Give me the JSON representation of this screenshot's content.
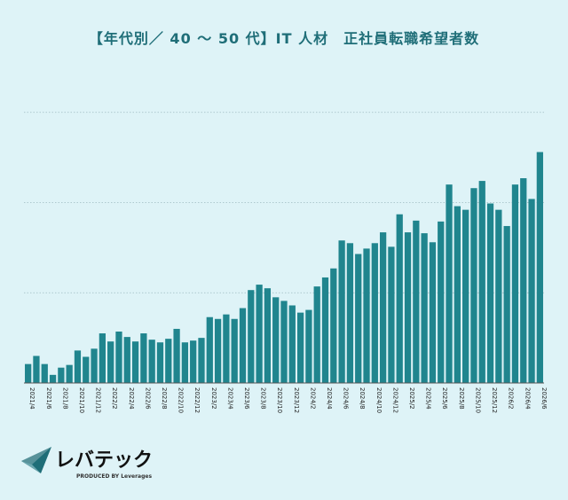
{
  "colors": {
    "bar": "#20858e",
    "grid": "#9fbcc2",
    "title": "#1f6e78",
    "background": "#def3f7"
  },
  "brand": {
    "name": "レバテック",
    "tagline": "PRODUCED BY Leverages"
  },
  "chart_data": {
    "type": "bar",
    "title": "【年代別／ 40 ～ 50 代】IT 人材　正社員転職希望者数",
    "xlabel": "",
    "ylabel": "",
    "ylim": [
      0,
      4.0
    ],
    "gridlines": [
      1,
      2,
      3
    ],
    "grid": true,
    "categories": [
      "2021/4",
      "2021/5",
      "2021/6",
      "2021/7",
      "2021/8",
      "2021/9",
      "2021/10",
      "2021/11",
      "2021/12",
      "2022/1",
      "2022/2",
      "2022/3",
      "2022/4",
      "2022/5",
      "2022/6",
      "2022/7",
      "2022/8",
      "2022/9",
      "2022/10",
      "2022/11",
      "2022/12",
      "2023/1",
      "2023/2",
      "2023/3",
      "2023/4",
      "2023/5",
      "2023/6",
      "2023/7",
      "2023/8",
      "2023/9",
      "2023/10",
      "2023/11",
      "2023/12",
      "2024/1",
      "2024/2",
      "2024/3",
      "2024/4",
      "2024/5",
      "2024/6",
      "2024/7",
      "2024/8",
      "2024/9",
      "2024/10",
      "2024/11",
      "2024/12",
      "2025/1",
      "2025/2",
      "2025/3",
      "2025/4",
      "2025/5",
      "2025/6",
      "2025/7",
      "2025/8",
      "2025/9",
      "2025/10",
      "2025/11",
      "2025/12",
      "2026/1",
      "2026/2",
      "2026/3",
      "2026/4",
      "2026/5",
      "2026/6"
    ],
    "tick_labels": [
      "2021/4",
      "2021/6",
      "2021/8",
      "2021/10",
      "2021/12",
      "2022/2",
      "2022/4",
      "2022/6",
      "2022/8",
      "2022/10",
      "2022/12",
      "2023/2",
      "2023/4",
      "2023/6",
      "2023/8",
      "2023/10",
      "2023/12",
      "2024/2",
      "2024/4",
      "2024/6",
      "2024/8",
      "2024/10",
      "2024/12",
      "2025/2",
      "2025/4",
      "2025/6",
      "2025/8",
      "2025/10",
      "2025/12",
      "2026/2",
      "2026/4",
      "2026/6"
    ],
    "values": [
      0.21,
      0.3,
      0.21,
      0.09,
      0.17,
      0.2,
      0.36,
      0.29,
      0.38,
      0.55,
      0.46,
      0.57,
      0.51,
      0.46,
      0.55,
      0.48,
      0.45,
      0.49,
      0.6,
      0.45,
      0.47,
      0.5,
      0.73,
      0.71,
      0.76,
      0.71,
      0.83,
      1.03,
      1.09,
      1.05,
      0.95,
      0.91,
      0.86,
      0.78,
      0.81,
      1.07,
      1.17,
      1.27,
      1.58,
      1.55,
      1.43,
      1.49,
      1.55,
      1.67,
      1.51,
      1.87,
      1.67,
      1.8,
      1.66,
      1.56,
      1.79,
      2.2,
      1.96,
      1.92,
      2.16,
      2.24,
      1.99,
      1.92,
      1.74,
      2.2,
      2.27,
      2.04,
      2.56
    ]
  }
}
